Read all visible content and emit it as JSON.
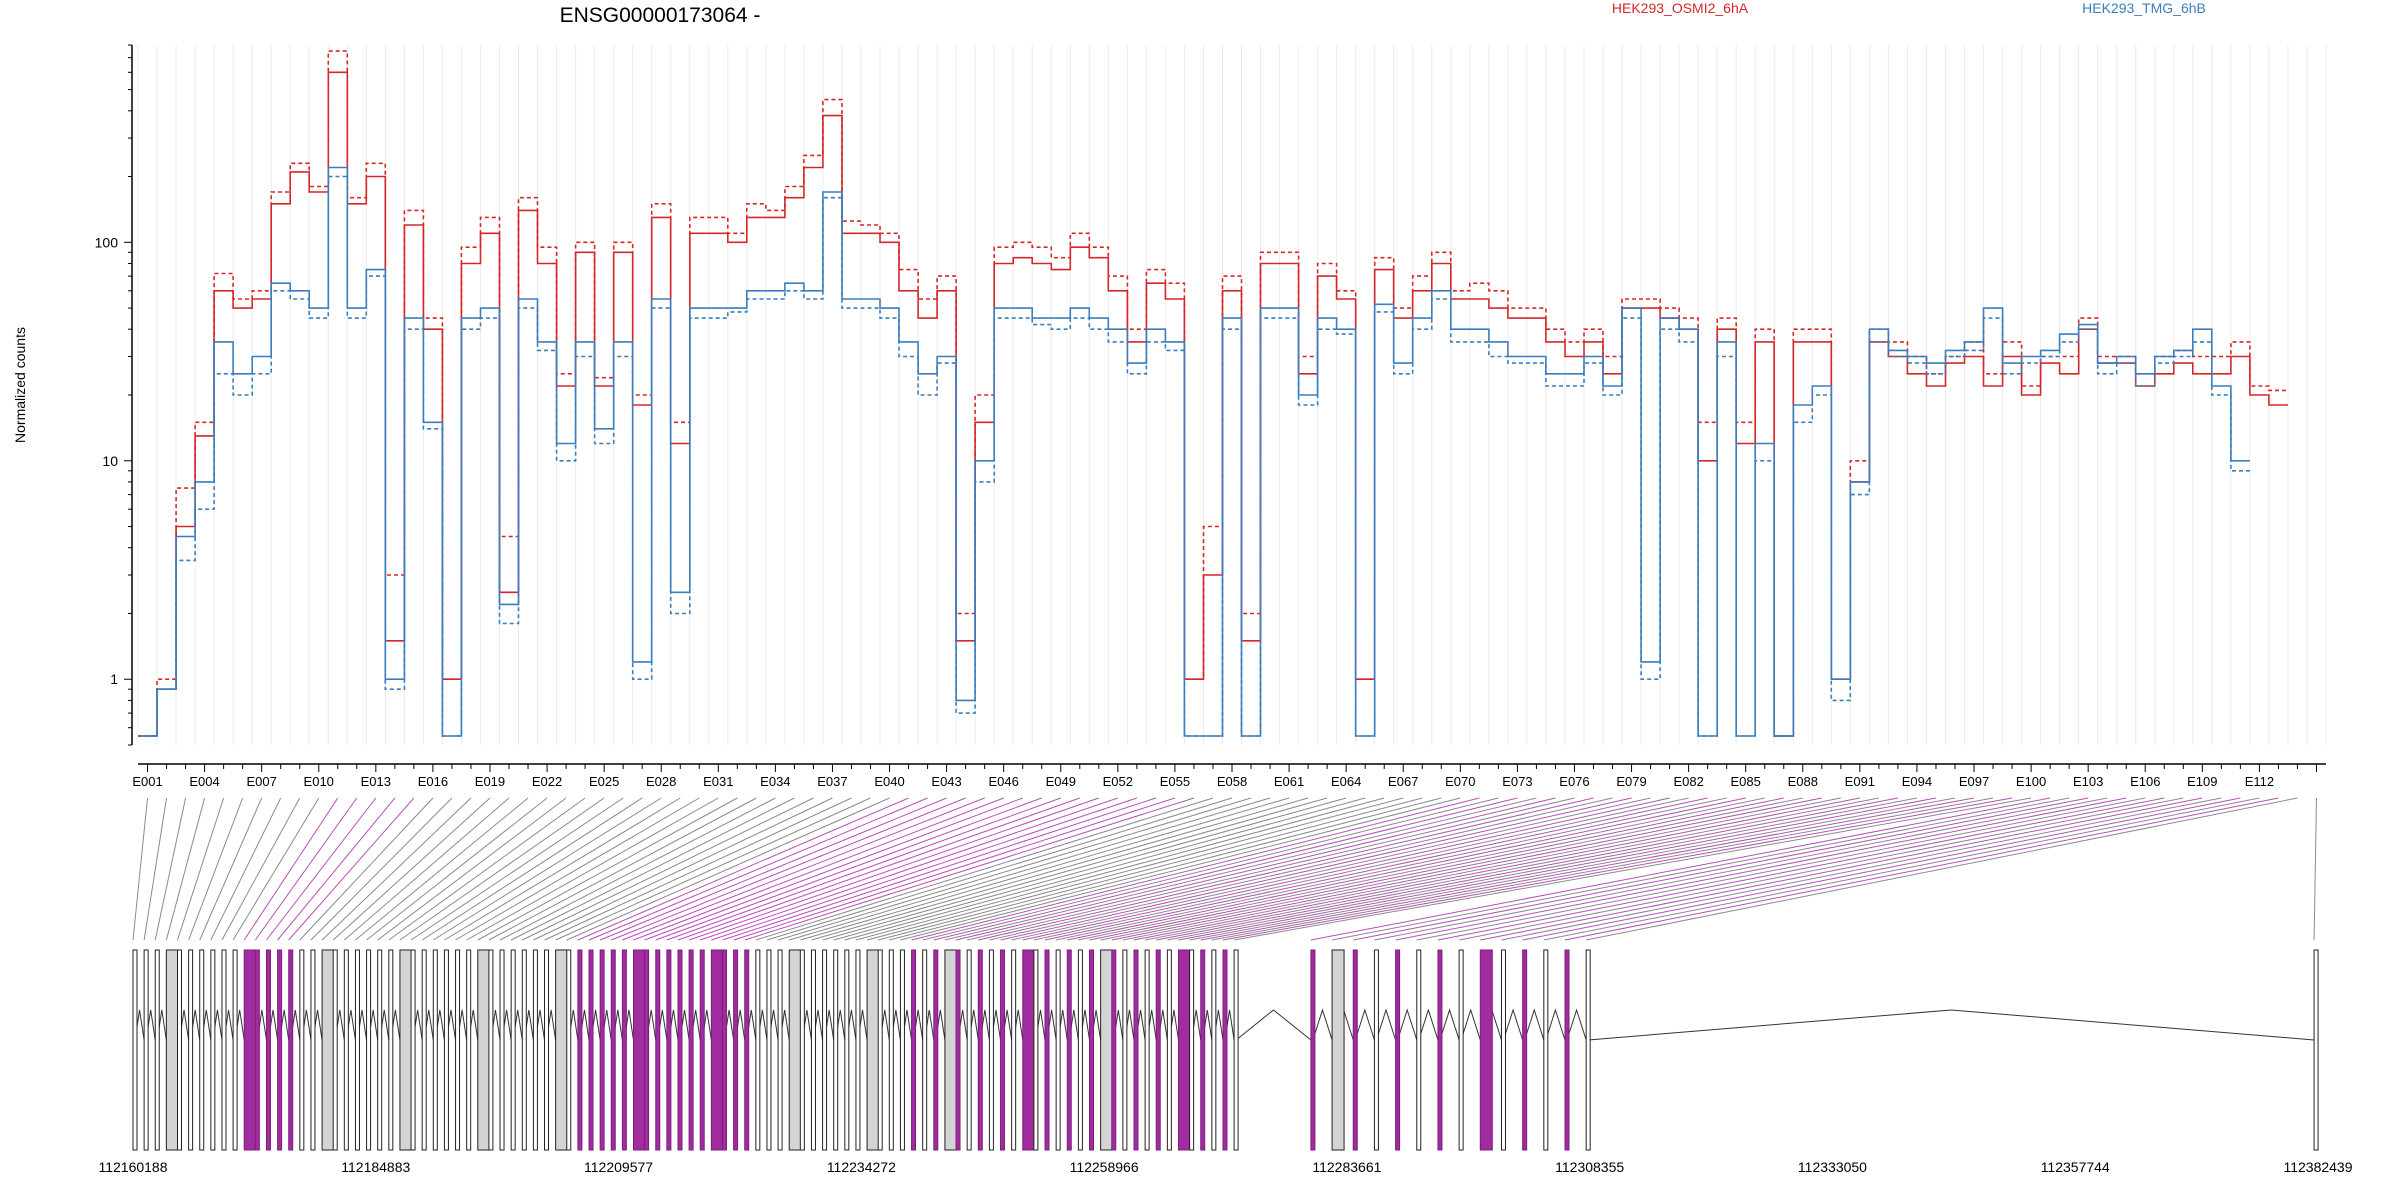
{
  "chart_data": {
    "type": "line",
    "title": "ENSG00000173064 -",
    "ylabel": "Normalized counts",
    "y_scale": "log",
    "y_ticks": [
      1,
      10,
      100
    ],
    "y_tick_labels": [
      "1",
      "10",
      "100"
    ],
    "ylim": [
      0.5,
      800
    ],
    "grid": "vertical lines per exon",
    "legend": [
      {
        "name": "HEK293_OSMI2_6hA",
        "color": "#d62728"
      },
      {
        "name": "HEK293_TMG_6hB",
        "color": "#3a7ebf"
      }
    ],
    "exon_tick_labels": [
      "E001",
      "E004",
      "E007",
      "E010",
      "E013",
      "E016",
      "E019",
      "E022",
      "E025",
      "E028",
      "E031",
      "E034",
      "E037",
      "E040",
      "E043",
      "E046",
      "E049",
      "E052",
      "E055",
      "E058",
      "E061",
      "E064",
      "E067",
      "E070",
      "E073",
      "E076",
      "E079",
      "E082",
      "E085",
      "E088",
      "E091",
      "E094",
      "E097",
      "E100",
      "E103",
      "E106",
      "E109",
      "E112"
    ],
    "series": [
      {
        "name": "HEK293_OSMI2_6hA",
        "color": "#d62728",
        "line": "dashed",
        "values": [
          0.55,
          1.0,
          7.5,
          15,
          72,
          55,
          60,
          170,
          230,
          180,
          750,
          160,
          230,
          3,
          140,
          45,
          1.0,
          95,
          130,
          4.5,
          160,
          95,
          25,
          100,
          24,
          100,
          20,
          150,
          15,
          130,
          130,
          110,
          150,
          140,
          180,
          250,
          450,
          125,
          120,
          110,
          75,
          55,
          70,
          2,
          20,
          95,
          100,
          95,
          85,
          110,
          95,
          70,
          40,
          75,
          65,
          1,
          5,
          70,
          2,
          90,
          90,
          30,
          80,
          60,
          1,
          85,
          50,
          70,
          90,
          60,
          65,
          60,
          50,
          50,
          40,
          35,
          40,
          30,
          55,
          55,
          50,
          45,
          15,
          45,
          15,
          40,
          0.55,
          40,
          40,
          1,
          10,
          40,
          35,
          30,
          25,
          30,
          35,
          25,
          35,
          22,
          30,
          30,
          45,
          30,
          30,
          25,
          30,
          32,
          30,
          30,
          35,
          22,
          21
        ]
      },
      {
        "name": "HEK293_OSMI2_6hA",
        "color": "#d62728",
        "line": "solid",
        "values": [
          0.55,
          0.9,
          5,
          13,
          60,
          50,
          55,
          150,
          210,
          170,
          600,
          150,
          200,
          1.5,
          120,
          40,
          1.0,
          80,
          110,
          2.5,
          140,
          80,
          22,
          90,
          22,
          90,
          18,
          130,
          12,
          110,
          110,
          100,
          130,
          130,
          160,
          220,
          380,
          110,
          110,
          100,
          60,
          45,
          60,
          1.5,
          15,
          80,
          85,
          80,
          75,
          95,
          85,
          60,
          35,
          65,
          55,
          1,
          3,
          60,
          1.5,
          80,
          80,
          25,
          70,
          55,
          1,
          75,
          45,
          60,
          80,
          55,
          55,
          50,
          45,
          45,
          35,
          30,
          35,
          25,
          50,
          50,
          45,
          40,
          10,
          40,
          12,
          35,
          0.55,
          35,
          35,
          1,
          8,
          35,
          30,
          25,
          22,
          28,
          30,
          22,
          30,
          20,
          28,
          25,
          40,
          28,
          28,
          22,
          25,
          28,
          25,
          25,
          30,
          20,
          18
        ]
      },
      {
        "name": "HEK293_TMG_6hB",
        "color": "#3a7ebf",
        "line": "dashed",
        "values": [
          0.55,
          0.9,
          3.5,
          6,
          25,
          20,
          25,
          60,
          55,
          45,
          200,
          45,
          70,
          0.9,
          40,
          14,
          0.55,
          40,
          45,
          1.8,
          50,
          32,
          10,
          30,
          12,
          30,
          1.0,
          50,
          2,
          45,
          45,
          48,
          55,
          55,
          60,
          55,
          160,
          50,
          50,
          45,
          30,
          20,
          28,
          0.7,
          8,
          45,
          45,
          42,
          40,
          45,
          40,
          35,
          25,
          35,
          32,
          0.55,
          0.55,
          40,
          0.55,
          45,
          45,
          18,
          40,
          38,
          0.55,
          48,
          25,
          40,
          55,
          35,
          35,
          30,
          28,
          28,
          22,
          22,
          28,
          20,
          45,
          1,
          40,
          35,
          0.55,
          30,
          0.55,
          10,
          0.55,
          15,
          20,
          0.8,
          7,
          35,
          30,
          28,
          25,
          30,
          32,
          45,
          25,
          28,
          30,
          35,
          40,
          25,
          28,
          22,
          28,
          30,
          35,
          20,
          9
        ]
      },
      {
        "name": "HEK293_TMG_6hB",
        "color": "#3a7ebf",
        "line": "solid",
        "values": [
          0.55,
          0.9,
          4.5,
          8,
          35,
          25,
          30,
          65,
          60,
          50,
          220,
          50,
          75,
          1.0,
          45,
          15,
          0.55,
          45,
          50,
          2.2,
          55,
          35,
          12,
          35,
          14,
          35,
          1.2,
          55,
          2.5,
          50,
          50,
          50,
          60,
          60,
          65,
          60,
          170,
          55,
          55,
          50,
          35,
          25,
          30,
          0.8,
          10,
          50,
          50,
          45,
          45,
          50,
          45,
          40,
          28,
          40,
          35,
          0.55,
          0.55,
          45,
          0.55,
          50,
          50,
          20,
          45,
          40,
          0.55,
          52,
          28,
          45,
          60,
          40,
          40,
          35,
          30,
          30,
          25,
          25,
          30,
          22,
          50,
          1.2,
          45,
          40,
          0.55,
          35,
          0.55,
          12,
          0.55,
          18,
          22,
          1.0,
          8,
          40,
          32,
          30,
          28,
          32,
          35,
          50,
          28,
          30,
          32,
          38,
          42,
          28,
          30,
          25,
          30,
          32,
          40,
          22,
          10
        ]
      }
    ],
    "genomic_ticks": [
      "112160188",
      "112184883",
      "112209577",
      "112234272",
      "112258966",
      "112283661",
      "112308355",
      "112333050",
      "112357744",
      "112382439"
    ]
  }
}
